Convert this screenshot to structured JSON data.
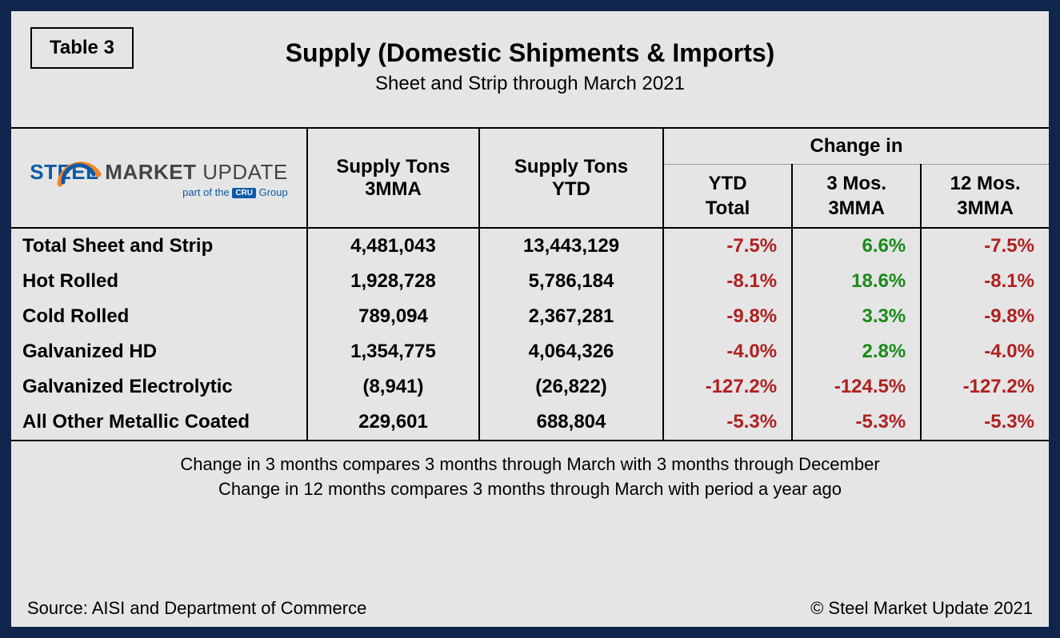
{
  "frame": {
    "border_color": "#10254b",
    "bg_color": "#e5e5e5"
  },
  "badge": "Table 3",
  "title": "Supply (Domestic Shipments & Imports)",
  "subtitle": "Sheet and Strip through March 2021",
  "logo": {
    "word1": "STEEL",
    "word2": "MARKET",
    "word3": "UPDATE",
    "tag_pre": "part of the",
    "tag_badge": "CRU",
    "tag_post": "Group",
    "swoosh_outer": "#f58220",
    "swoosh_inner": "#0b5aa8"
  },
  "headers": {
    "col_3mma_l1": "Supply Tons",
    "col_3mma_l2": "3MMA",
    "col_ytd_l1": "Supply Tons",
    "col_ytd_l2": "YTD",
    "change_group": "Change in",
    "sub1_l1": "YTD",
    "sub1_l2": "Total",
    "sub2_l1": "3 Mos.",
    "sub2_l2": "3MMA",
    "sub3_l1": "12 Mos.",
    "sub3_l2": "3MMA"
  },
  "colors": {
    "neg": "#b02020",
    "pos": "#1a8a1a",
    "text": "#000000"
  },
  "rows": [
    {
      "label": "Total Sheet and Strip",
      "mma": "4,481,043",
      "ytd": "13,443,129",
      "c1": {
        "v": "-7.5%",
        "s": "neg"
      },
      "c2": {
        "v": "6.6%",
        "s": "pos"
      },
      "c3": {
        "v": "-7.5%",
        "s": "neg"
      }
    },
    {
      "label": "Hot Rolled",
      "mma": "1,928,728",
      "ytd": "5,786,184",
      "c1": {
        "v": "-8.1%",
        "s": "neg"
      },
      "c2": {
        "v": "18.6%",
        "s": "pos"
      },
      "c3": {
        "v": "-8.1%",
        "s": "neg"
      }
    },
    {
      "label": "Cold Rolled",
      "mma": "789,094",
      "ytd": "2,367,281",
      "c1": {
        "v": "-9.8%",
        "s": "neg"
      },
      "c2": {
        "v": "3.3%",
        "s": "pos"
      },
      "c3": {
        "v": "-9.8%",
        "s": "neg"
      }
    },
    {
      "label": "Galvanized HD",
      "mma": "1,354,775",
      "ytd": "4,064,326",
      "c1": {
        "v": "-4.0%",
        "s": "neg"
      },
      "c2": {
        "v": "2.8%",
        "s": "pos"
      },
      "c3": {
        "v": "-4.0%",
        "s": "neg"
      }
    },
    {
      "label": "Galvanized Electrolytic",
      "mma": "(8,941)",
      "ytd": "(26,822)",
      "c1": {
        "v": "-127.2%",
        "s": "neg"
      },
      "c2": {
        "v": "-124.5%",
        "s": "neg"
      },
      "c3": {
        "v": "-127.2%",
        "s": "neg"
      }
    },
    {
      "label": "All Other Metallic Coated",
      "mma": "229,601",
      "ytd": "688,804",
      "c1": {
        "v": "-5.3%",
        "s": "neg"
      },
      "c2": {
        "v": "-5.3%",
        "s": "neg"
      },
      "c3": {
        "v": "-5.3%",
        "s": "neg"
      }
    }
  ],
  "footnote_l1": "Change in 3 months compares 3 months through March with 3 months through December",
  "footnote_l2": "Change in 12 months compares 3 months through March with period a year ago",
  "source": "Source: AISI and Department of Commerce",
  "copyright": "© Steel Market Update 2021"
}
